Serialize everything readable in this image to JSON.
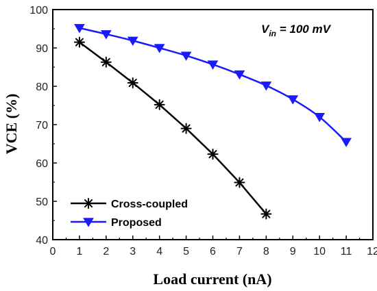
{
  "chart_data": {
    "type": "line",
    "xlabel": "Load current (nA)",
    "ylabel": "VCE (%)",
    "xlim": [
      0,
      12
    ],
    "ylim": [
      40,
      100
    ],
    "xticks": [
      "0",
      "1",
      "2",
      "3",
      "4",
      "5",
      "6",
      "7",
      "8",
      "9",
      "10",
      "11",
      "12"
    ],
    "yticks": [
      "40",
      "50",
      "60",
      "70",
      "80",
      "90",
      "100"
    ],
    "grid": false,
    "legend_position": "bottom-left",
    "annotation": {
      "main": "V",
      "sub": "in",
      "rest": " = 100 mV"
    },
    "series": [
      {
        "name": "Cross-coupled",
        "color": "#000000",
        "marker": "asterisk",
        "x": [
          1,
          2,
          3,
          4,
          5,
          6,
          7,
          8
        ],
        "y": [
          91.5,
          86.3,
          80.9,
          75.2,
          69.0,
          62.3,
          54.9,
          46.7
        ]
      },
      {
        "name": "Proposed",
        "color": "#1a1aff",
        "marker": "triangle-down",
        "x": [
          1,
          2,
          3,
          4,
          5,
          6,
          7,
          8,
          9,
          10,
          11
        ],
        "y": [
          95.2,
          93.6,
          91.9,
          90.0,
          88.0,
          85.7,
          83.1,
          80.2,
          76.6,
          72.0,
          65.5
        ]
      }
    ]
  }
}
